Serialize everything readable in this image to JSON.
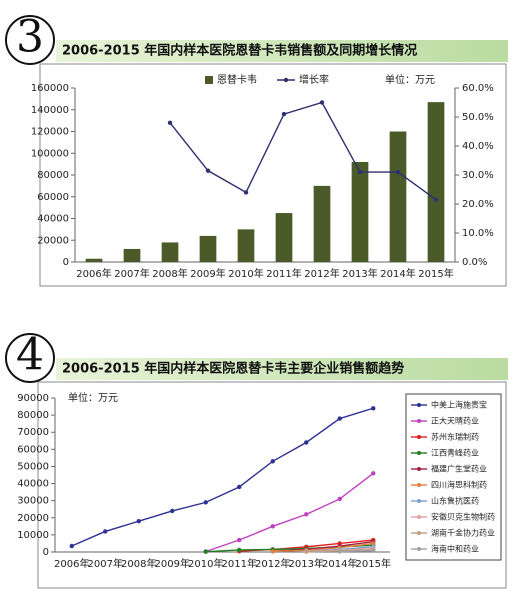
{
  "chart_data": [
    {
      "type": "bar",
      "figure_number": "3",
      "title": "2006-2015 年国内样本医院恩替卡韦销售额及同期增长情况",
      "unit_note": "单位：万元",
      "legend": "top",
      "categories": [
        "2006年",
        "2007年",
        "2008年",
        "2009年",
        "2010年",
        "2011年",
        "2012年",
        "2013年",
        "2014年",
        "2015年"
      ],
      "series": [
        {
          "name": "恩替卡韦",
          "color": "#4a5a28",
          "values": [
            3000,
            12000,
            18000,
            24000,
            30000,
            45000,
            70000,
            92000,
            120000,
            147000
          ]
        },
        {
          "name": "增长率",
          "color": "#2e3170",
          "axis": "y2",
          "values": [
            null,
            null,
            48,
            31.5,
            24,
            51,
            55,
            31,
            31,
            21.5
          ]
        }
      ],
      "ylim": [
        0,
        160000
      ],
      "yticks": [
        0,
        20000,
        40000,
        60000,
        80000,
        100000,
        120000,
        140000,
        160000
      ],
      "y2lim": [
        0,
        60
      ],
      "y2ticks": [
        {
          "value": 0,
          "label": "0.0%"
        },
        {
          "value": 10,
          "label": "10.0%"
        },
        {
          "value": 20,
          "label": "20.0%"
        },
        {
          "value": 30,
          "label": "30.0%"
        },
        {
          "value": 40,
          "label": "40.0%"
        },
        {
          "value": 50,
          "label": "50.0%"
        },
        {
          "value": 60,
          "label": "60.0%"
        }
      ]
    },
    {
      "type": "line",
      "figure_number": "4",
      "title": "2006-2015 年国内样本医院恩替卡韦主要企业销售额趋势",
      "unit_note": "单位：万元",
      "legend": "right",
      "categories": [
        "2006年",
        "2007年",
        "2008年",
        "2009年",
        "2010年",
        "2011年",
        "2012年",
        "2013年",
        "2014年",
        "2015年"
      ],
      "series": [
        {
          "name": "中美上海施贵宝",
          "color": "#2e3192",
          "values": [
            3500,
            12000,
            18000,
            24000,
            29000,
            38000,
            53000,
            64000,
            78000,
            84000
          ]
        },
        {
          "name": "正大天晴药业",
          "color": "#c040c0",
          "values": [
            null,
            null,
            null,
            null,
            300,
            7000,
            15000,
            22000,
            31000,
            46000
          ]
        },
        {
          "name": "苏州东瑞制药",
          "color": "#e02020",
          "values": [
            null,
            null,
            null,
            null,
            null,
            500,
            1500,
            3000,
            5000,
            7000
          ]
        },
        {
          "name": "江西青峰药业",
          "color": "#208020",
          "values": [
            null,
            null,
            null,
            null,
            200,
            1200,
            1500,
            2000,
            3000,
            4000
          ]
        },
        {
          "name": "福建广生堂药业",
          "color": "#a02040",
          "values": [
            null,
            null,
            null,
            null,
            null,
            null,
            500,
            1500,
            3500,
            6000
          ]
        },
        {
          "name": "四川海思科制药",
          "color": "#e08040",
          "values": [
            null,
            null,
            null,
            null,
            null,
            null,
            300,
            1000,
            2500,
            5000
          ]
        },
        {
          "name": "山东鲁抗医药",
          "color": "#80a0d0",
          "values": [
            null,
            null,
            null,
            null,
            null,
            null,
            null,
            500,
            1500,
            3000
          ]
        },
        {
          "name": "安徽贝克生物制药",
          "color": "#e0a0a0",
          "values": [
            null,
            null,
            null,
            null,
            null,
            null,
            null,
            300,
            1000,
            2000
          ]
        },
        {
          "name": "湖南千金协力药业",
          "color": "#c0a080",
          "values": [
            null,
            null,
            null,
            null,
            null,
            null,
            null,
            200,
            600,
            1200
          ]
        },
        {
          "name": "海南中和药业",
          "color": "#a0a0a0",
          "values": [
            null,
            null,
            null,
            null,
            null,
            null,
            null,
            null,
            300,
            800
          ]
        }
      ],
      "ylim": [
        0,
        90000
      ],
      "yticks": [
        0,
        10000,
        20000,
        30000,
        40000,
        50000,
        60000,
        70000,
        80000,
        90000
      ]
    }
  ]
}
